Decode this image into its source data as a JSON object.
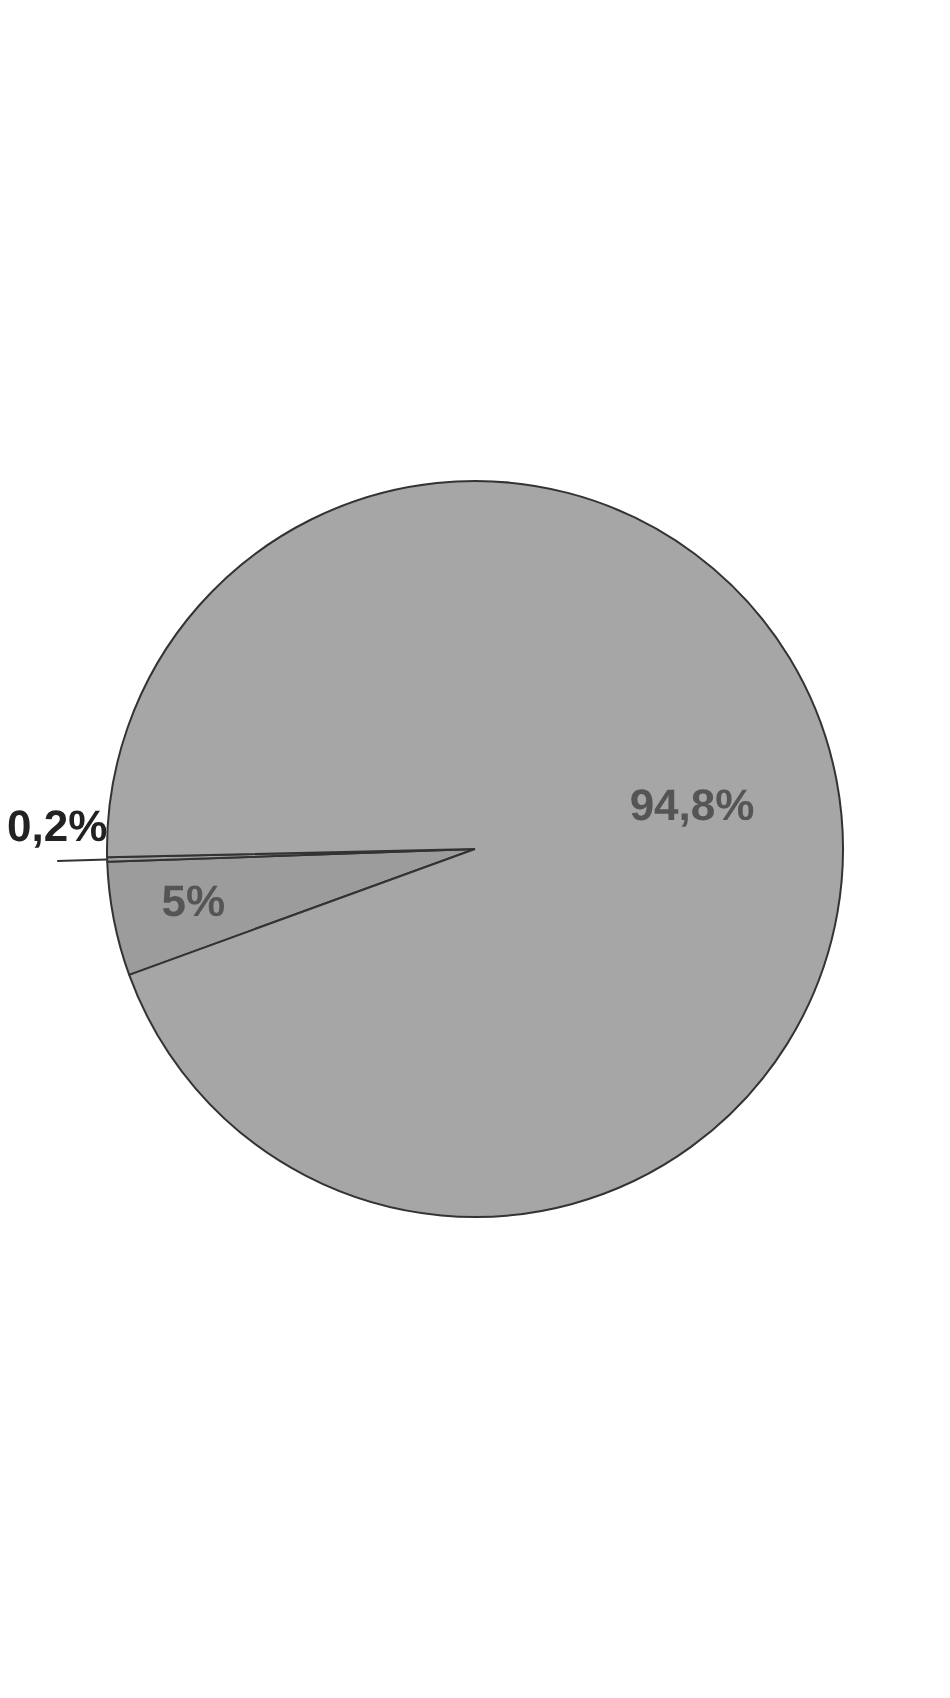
{
  "chart_data": {
    "type": "pie",
    "categories": [
      null,
      null,
      null
    ],
    "values": [
      5,
      0.2,
      94.8
    ],
    "colors": [
      "#9c9c9c",
      "#a3a3a3",
      "#a6a6a6"
    ],
    "value_labels": [
      "5%",
      "0,2%",
      "94,8%"
    ],
    "legend": false
  }
}
